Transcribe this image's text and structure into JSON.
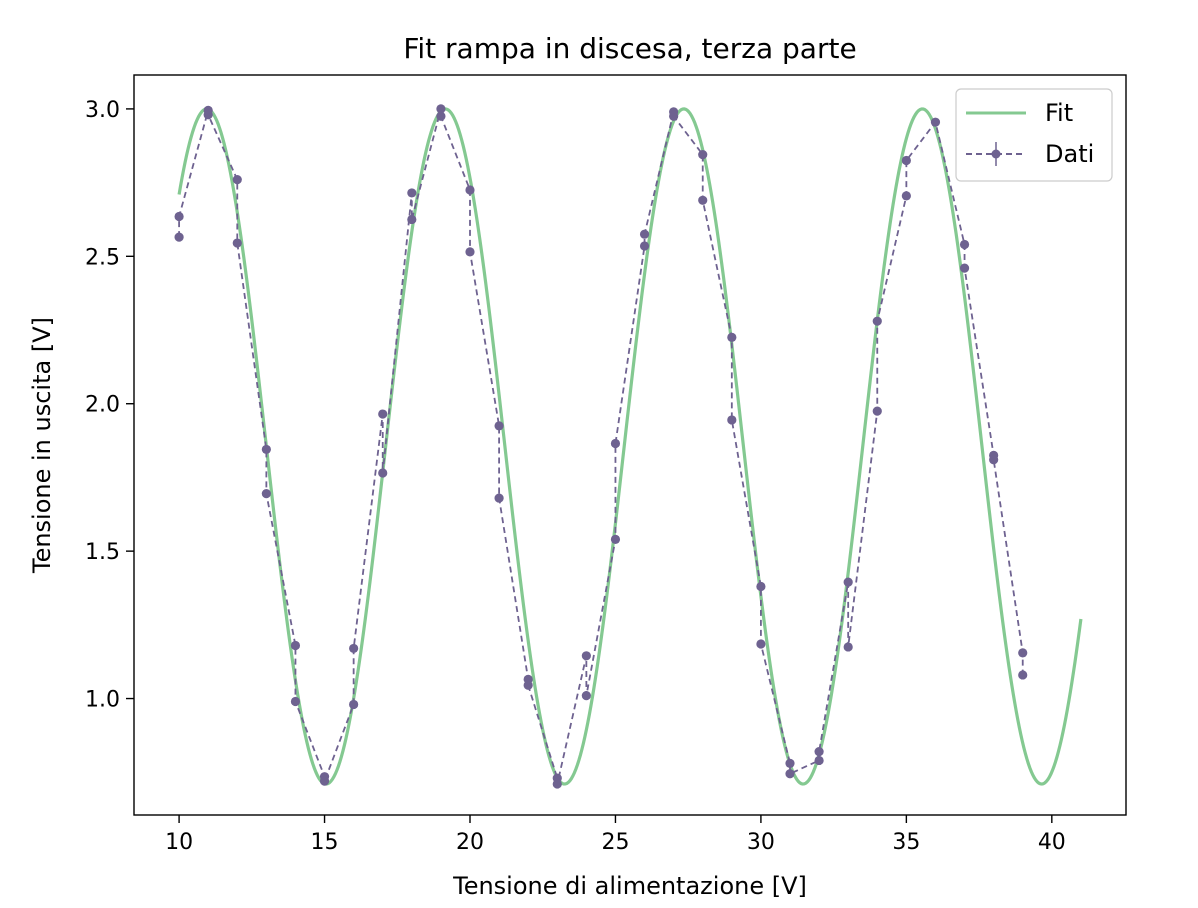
{
  "chart_data": {
    "type": "line",
    "title": "Fit rampa in discesa, terza parte",
    "xlabel": "Tensione di alimentazione [V]",
    "ylabel": "Tensione in uscita [V]",
    "xlim": [
      8.45,
      42.55
    ],
    "ylim": [
      0.605,
      3.115
    ],
    "xticks": [
      10,
      15,
      20,
      25,
      30,
      35,
      40
    ],
    "yticks": [
      1.0,
      1.5,
      2.0,
      2.5,
      3.0
    ],
    "xtick_labels": [
      "10",
      "15",
      "20",
      "25",
      "30",
      "35",
      "40"
    ],
    "ytick_labels": [
      "1.0",
      "1.5",
      "2.0",
      "2.5",
      "3.0"
    ],
    "grid": false,
    "legend_position": "top-right",
    "series": [
      {
        "name": "Fit",
        "kind": "line",
        "color": "#84c991",
        "model": {
          "formula": "offset + amplitude*cos(2*pi*(x - peak_x)/period)",
          "offset": 1.855,
          "amplitude": 1.145,
          "period": 8.2,
          "peak_x": 10.95,
          "x_range": [
            10.0,
            41.0
          ]
        }
      },
      {
        "name": "Dati",
        "kind": "errorbar-line",
        "color": "#6e6290",
        "x": [
          10,
          10,
          11,
          11,
          12,
          12,
          13,
          13,
          14,
          14,
          15,
          15,
          16,
          16,
          17,
          17,
          18,
          18,
          19,
          19,
          20,
          20,
          21,
          21,
          22,
          22,
          23,
          23,
          24,
          24,
          25,
          25,
          26,
          26,
          27,
          27,
          28,
          28,
          29,
          29,
          30,
          30,
          31,
          31,
          32,
          32,
          33,
          33,
          34,
          34,
          35,
          35,
          36,
          37,
          37,
          38,
          38,
          39,
          39
        ],
        "y": [
          2.565,
          2.635,
          2.995,
          2.98,
          2.76,
          2.545,
          1.845,
          1.695,
          1.18,
          0.99,
          0.735,
          0.72,
          0.98,
          1.17,
          1.965,
          1.765,
          2.715,
          2.625,
          3.0,
          2.975,
          2.725,
          2.515,
          1.925,
          1.68,
          1.065,
          1.045,
          0.73,
          0.71,
          1.145,
          1.01,
          1.54,
          1.865,
          2.535,
          2.575,
          2.99,
          2.975,
          2.845,
          2.69,
          2.225,
          1.945,
          1.38,
          1.185,
          0.78,
          0.745,
          0.79,
          0.82,
          1.395,
          1.175,
          1.975,
          2.28,
          2.705,
          2.825,
          2.955,
          2.54,
          2.46,
          1.825,
          1.81,
          1.155,
          1.08
        ]
      }
    ]
  }
}
